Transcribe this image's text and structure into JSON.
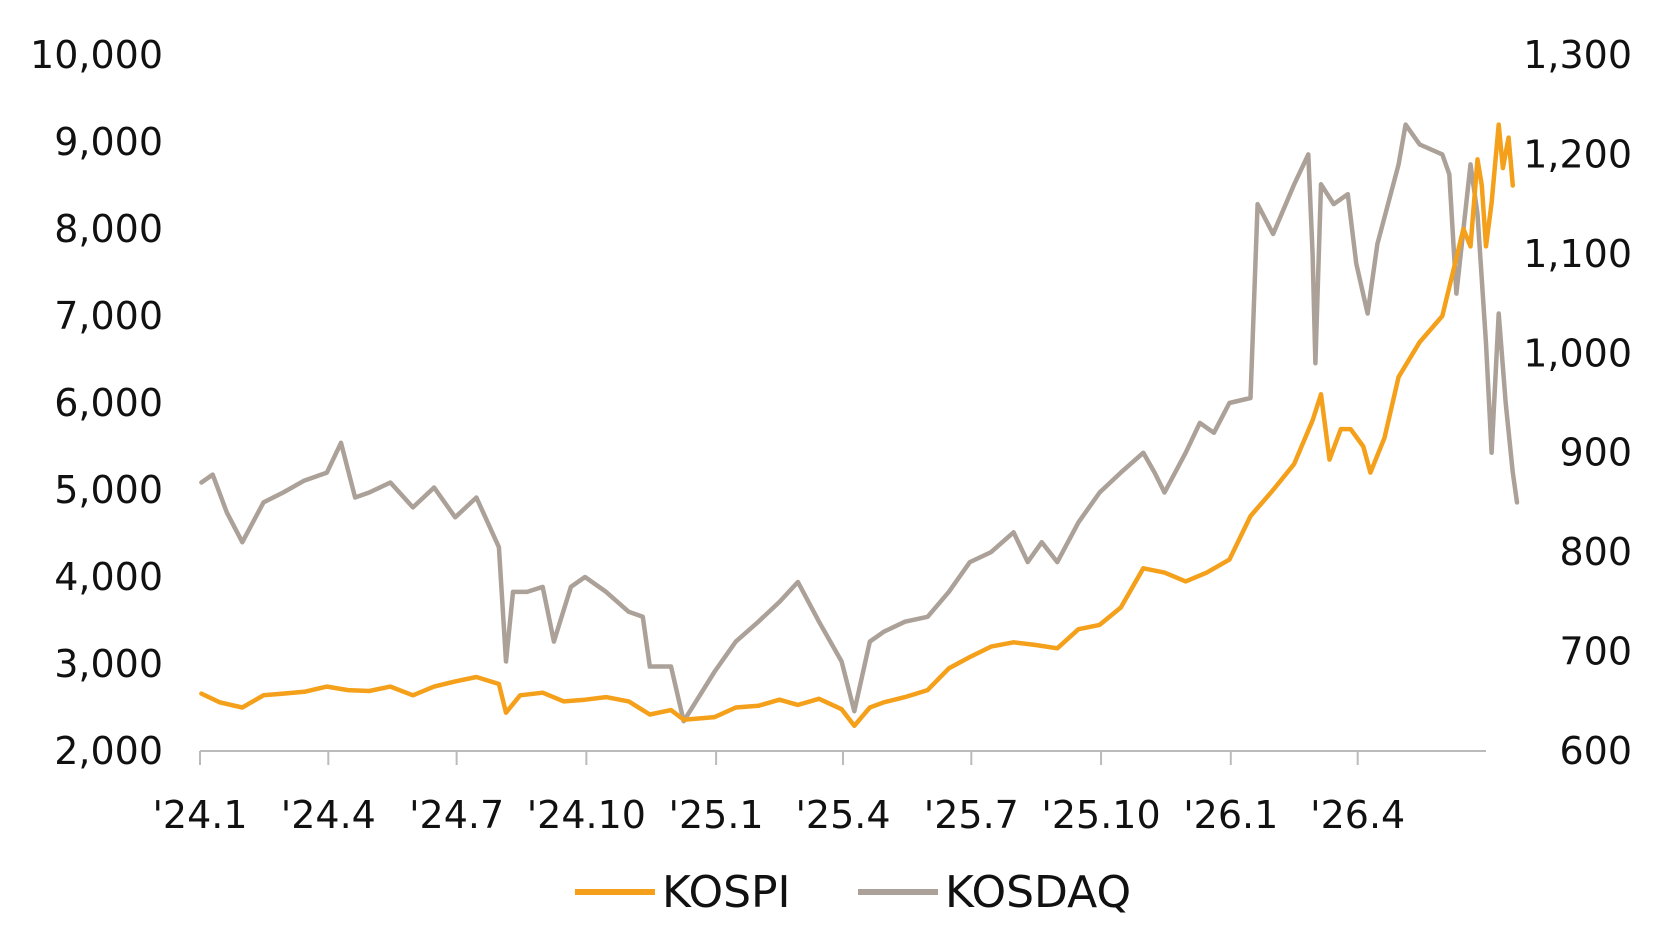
{
  "chart_data": {
    "type": "line",
    "title": "",
    "xlabel": "",
    "ylabel": "",
    "x_tick_labels": [
      "'24.1",
      "'24.4",
      "'24.7",
      "'24.10",
      "'25.1",
      "'25.4",
      "'25.7",
      "'25.10",
      "'26.1",
      "'26.4"
    ],
    "x_tick_dates": [
      "2024-01",
      "2024-04",
      "2024-07",
      "2024-10",
      "2025-01",
      "2025-04",
      "2025-07",
      "2025-10",
      "2026-01",
      "2026-04"
    ],
    "x_range": [
      "2024-01",
      "2026-07"
    ],
    "y_left": {
      "ticks": [
        2000,
        3000,
        4000,
        5000,
        6000,
        7000,
        8000,
        9000,
        10000
      ],
      "tick_labels": [
        "2,000",
        "3,000",
        "4,000",
        "5,000",
        "6,000",
        "7,000",
        "8,000",
        "9,000",
        "10,000"
      ],
      "range": [
        2000,
        10000
      ]
    },
    "y_right": {
      "ticks": [
        600,
        700,
        800,
        900,
        1000,
        1100,
        1200,
        1300
      ],
      "tick_labels": [
        "600",
        "700",
        "800",
        "900",
        "1,000",
        "1,100",
        "1,200",
        "1,300"
      ],
      "range": [
        600,
        1300
      ]
    },
    "grid": false,
    "legend_position": "bottom-center",
    "series": [
      {
        "name": "KOSPI",
        "axis": "left",
        "color": "#F5A01A",
        "points": [
          [
            "2024-01-02",
            2660
          ],
          [
            "2024-01-15",
            2560
          ],
          [
            "2024-01-31",
            2500
          ],
          [
            "2024-02-15",
            2640
          ],
          [
            "2024-02-29",
            2660
          ],
          [
            "2024-03-15",
            2680
          ],
          [
            "2024-03-31",
            2740
          ],
          [
            "2024-04-15",
            2700
          ],
          [
            "2024-04-30",
            2690
          ],
          [
            "2024-05-15",
            2740
          ],
          [
            "2024-05-31",
            2640
          ],
          [
            "2024-06-15",
            2740
          ],
          [
            "2024-06-30",
            2800
          ],
          [
            "2024-07-15",
            2850
          ],
          [
            "2024-07-31",
            2770
          ],
          [
            "2024-08-05",
            2440
          ],
          [
            "2024-08-15",
            2640
          ],
          [
            "2024-08-31",
            2670
          ],
          [
            "2024-09-15",
            2570
          ],
          [
            "2024-09-30",
            2590
          ],
          [
            "2024-10-15",
            2620
          ],
          [
            "2024-10-31",
            2570
          ],
          [
            "2024-11-15",
            2420
          ],
          [
            "2024-11-30",
            2470
          ],
          [
            "2024-12-09",
            2360
          ],
          [
            "2024-12-31",
            2390
          ],
          [
            "2025-01-15",
            2500
          ],
          [
            "2025-01-31",
            2520
          ],
          [
            "2025-02-15",
            2590
          ],
          [
            "2025-02-28",
            2530
          ],
          [
            "2025-03-15",
            2600
          ],
          [
            "2025-03-31",
            2480
          ],
          [
            "2025-04-09",
            2290
          ],
          [
            "2025-04-20",
            2500
          ],
          [
            "2025-04-30",
            2560
          ],
          [
            "2025-05-15",
            2620
          ],
          [
            "2025-05-31",
            2700
          ],
          [
            "2025-06-15",
            2950
          ],
          [
            "2025-06-30",
            3080
          ],
          [
            "2025-07-15",
            3200
          ],
          [
            "2025-07-31",
            3250
          ],
          [
            "2025-08-15",
            3220
          ],
          [
            "2025-08-31",
            3180
          ],
          [
            "2025-09-15",
            3400
          ],
          [
            "2025-09-30",
            3450
          ],
          [
            "2025-10-15",
            3650
          ],
          [
            "2025-10-31",
            4100
          ],
          [
            "2025-11-15",
            4050
          ],
          [
            "2025-11-30",
            3950
          ],
          [
            "2025-12-15",
            4050
          ],
          [
            "2025-12-31",
            4200
          ],
          [
            "2026-01-15",
            4700
          ],
          [
            "2026-01-31",
            5000
          ],
          [
            "2026-02-15",
            5300
          ],
          [
            "2026-02-28",
            5800
          ],
          [
            "2026-03-06",
            6100
          ],
          [
            "2026-03-12",
            5350
          ],
          [
            "2026-03-20",
            5700
          ],
          [
            "2026-03-27",
            5700
          ],
          [
            "2026-04-05",
            5500
          ],
          [
            "2026-04-10",
            5200
          ],
          [
            "2026-04-20",
            5600
          ],
          [
            "2026-04-30",
            6300
          ],
          [
            "2026-05-15",
            6700
          ],
          [
            "2026-05-31",
            7000
          ],
          [
            "2026-06-15",
            8000
          ],
          [
            "2026-06-20",
            7800
          ],
          [
            "2026-06-25",
            8800
          ],
          [
            "2026-06-28",
            8500
          ],
          [
            "2026-07-01",
            7800
          ],
          [
            "2026-07-05",
            8300
          ],
          [
            "2026-07-10",
            9200
          ],
          [
            "2026-07-13",
            8700
          ],
          [
            "2026-07-17",
            9050
          ],
          [
            "2026-07-20",
            8500
          ]
        ]
      },
      {
        "name": "KOSDAQ",
        "axis": "right",
        "color": "#ABA198",
        "points": [
          [
            "2024-01-02",
            870
          ],
          [
            "2024-01-10",
            878
          ],
          [
            "2024-01-20",
            840
          ],
          [
            "2024-01-31",
            810
          ],
          [
            "2024-02-15",
            850
          ],
          [
            "2024-02-29",
            860
          ],
          [
            "2024-03-15",
            872
          ],
          [
            "2024-03-31",
            880
          ],
          [
            "2024-04-10",
            910
          ],
          [
            "2024-04-20",
            855
          ],
          [
            "2024-04-30",
            860
          ],
          [
            "2024-05-15",
            870
          ],
          [
            "2024-05-31",
            845
          ],
          [
            "2024-06-15",
            865
          ],
          [
            "2024-06-30",
            835
          ],
          [
            "2024-07-15",
            855
          ],
          [
            "2024-07-31",
            805
          ],
          [
            "2024-08-05",
            690
          ],
          [
            "2024-08-10",
            760
          ],
          [
            "2024-08-20",
            760
          ],
          [
            "2024-08-31",
            765
          ],
          [
            "2024-09-08",
            710
          ],
          [
            "2024-09-20",
            765
          ],
          [
            "2024-09-30",
            775
          ],
          [
            "2024-10-15",
            760
          ],
          [
            "2024-10-31",
            740
          ],
          [
            "2024-11-10",
            735
          ],
          [
            "2024-11-15",
            685
          ],
          [
            "2024-11-30",
            685
          ],
          [
            "2024-12-09",
            630
          ],
          [
            "2024-12-31",
            680
          ],
          [
            "2025-01-15",
            710
          ],
          [
            "2025-01-31",
            730
          ],
          [
            "2025-02-15",
            750
          ],
          [
            "2025-02-28",
            770
          ],
          [
            "2025-03-15",
            730
          ],
          [
            "2025-03-31",
            690
          ],
          [
            "2025-04-09",
            640
          ],
          [
            "2025-04-20",
            710
          ],
          [
            "2025-04-30",
            720
          ],
          [
            "2025-05-15",
            730
          ],
          [
            "2025-05-31",
            735
          ],
          [
            "2025-06-15",
            760
          ],
          [
            "2025-06-30",
            790
          ],
          [
            "2025-07-15",
            800
          ],
          [
            "2025-07-31",
            820
          ],
          [
            "2025-08-10",
            790
          ],
          [
            "2025-08-20",
            810
          ],
          [
            "2025-08-31",
            790
          ],
          [
            "2025-09-15",
            830
          ],
          [
            "2025-09-30",
            860
          ],
          [
            "2025-10-15",
            880
          ],
          [
            "2025-10-31",
            900
          ],
          [
            "2025-11-08",
            880
          ],
          [
            "2025-11-15",
            860
          ],
          [
            "2025-11-30",
            900
          ],
          [
            "2025-12-10",
            930
          ],
          [
            "2025-12-20",
            920
          ],
          [
            "2025-12-31",
            950
          ],
          [
            "2026-01-15",
            955
          ],
          [
            "2026-01-20",
            1150
          ],
          [
            "2026-01-31",
            1120
          ],
          [
            "2026-02-15",
            1170
          ],
          [
            "2026-02-25",
            1200
          ],
          [
            "2026-02-28",
            1100
          ],
          [
            "2026-03-02",
            990
          ],
          [
            "2026-03-06",
            1170
          ],
          [
            "2026-03-15",
            1150
          ],
          [
            "2026-03-25",
            1160
          ],
          [
            "2026-03-31",
            1090
          ],
          [
            "2026-04-08",
            1040
          ],
          [
            "2026-04-15",
            1110
          ],
          [
            "2026-04-30",
            1190
          ],
          [
            "2026-05-05",
            1230
          ],
          [
            "2026-05-15",
            1210
          ],
          [
            "2026-05-31",
            1200
          ],
          [
            "2026-06-05",
            1180
          ],
          [
            "2026-06-10",
            1060
          ],
          [
            "2026-06-20",
            1190
          ],
          [
            "2026-06-25",
            1140
          ],
          [
            "2026-07-01",
            1010
          ],
          [
            "2026-07-05",
            900
          ],
          [
            "2026-07-10",
            1040
          ],
          [
            "2026-07-15",
            950
          ],
          [
            "2026-07-20",
            880
          ],
          [
            "2026-07-23",
            850
          ]
        ]
      }
    ]
  }
}
